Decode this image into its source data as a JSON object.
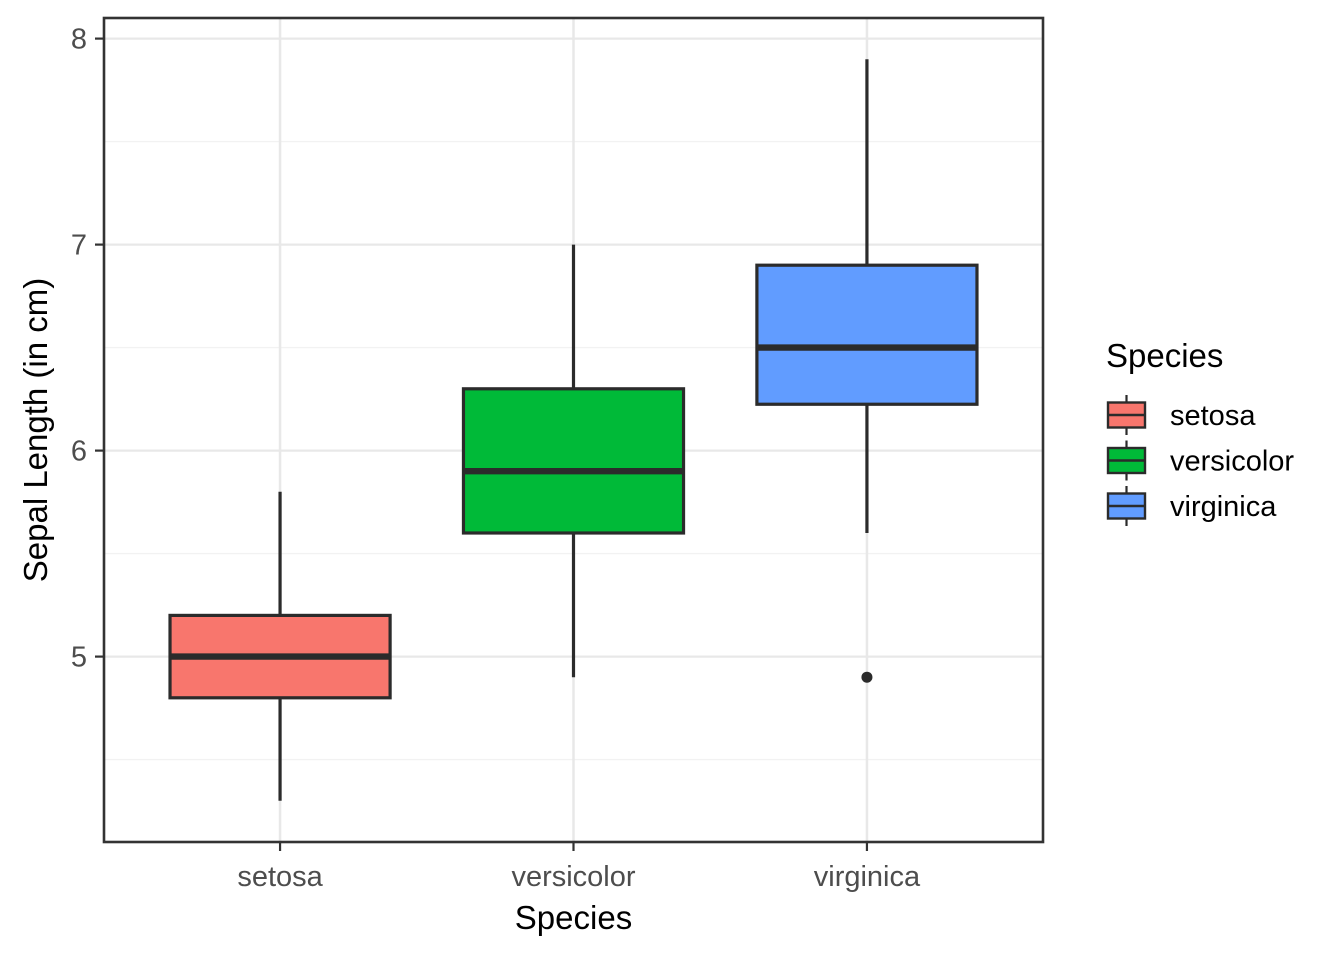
{
  "chart_data": {
    "type": "boxplot",
    "title": "",
    "xlabel": "Species",
    "ylabel": "Sepal Length (in cm)",
    "categories": [
      "setosa",
      "versicolor",
      "virginica"
    ],
    "y_ticks": [
      5,
      6,
      7,
      8
    ],
    "y_minor_ticks": [
      4.5,
      5.5,
      6.5,
      7.5
    ],
    "ylim": [
      4.1,
      8.1
    ],
    "grid": "horizontal major+minor gridlines, vertical major gridline per category, light gray on white, black panel border",
    "legend": {
      "title": "Species",
      "position": "right",
      "entries": [
        {
          "label": "setosa",
          "color": "#F8766D"
        },
        {
          "label": "versicolor",
          "color": "#00BA38"
        },
        {
          "label": "virginica",
          "color": "#619CFF"
        }
      ]
    },
    "series": [
      {
        "name": "setosa",
        "color": "#F8766D",
        "whisker_low": 4.3,
        "q1": 4.8,
        "median": 5.0,
        "q3": 5.2,
        "whisker_high": 5.8,
        "outliers": []
      },
      {
        "name": "versicolor",
        "color": "#00BA38",
        "whisker_low": 4.9,
        "q1": 5.6,
        "median": 5.9,
        "q3": 6.3,
        "whisker_high": 7.0,
        "outliers": []
      },
      {
        "name": "virginica",
        "color": "#619CFF",
        "whisker_low": 5.6,
        "q1": 6.225,
        "median": 6.5,
        "q3": 6.9,
        "whisker_high": 7.9,
        "outliers": [
          4.9
        ]
      }
    ],
    "style": {
      "box_border_color": "#2B2B2B",
      "outlier_color": "#2B2B2B",
      "axis_text_color": "#4D4D4D",
      "title_color": "#000000",
      "grid_major_color": "#E8E8E8",
      "grid_minor_color": "#F2F2F2",
      "panel_border_color": "#333333",
      "tick_color": "#333333",
      "background": "#FFFFFF"
    }
  }
}
